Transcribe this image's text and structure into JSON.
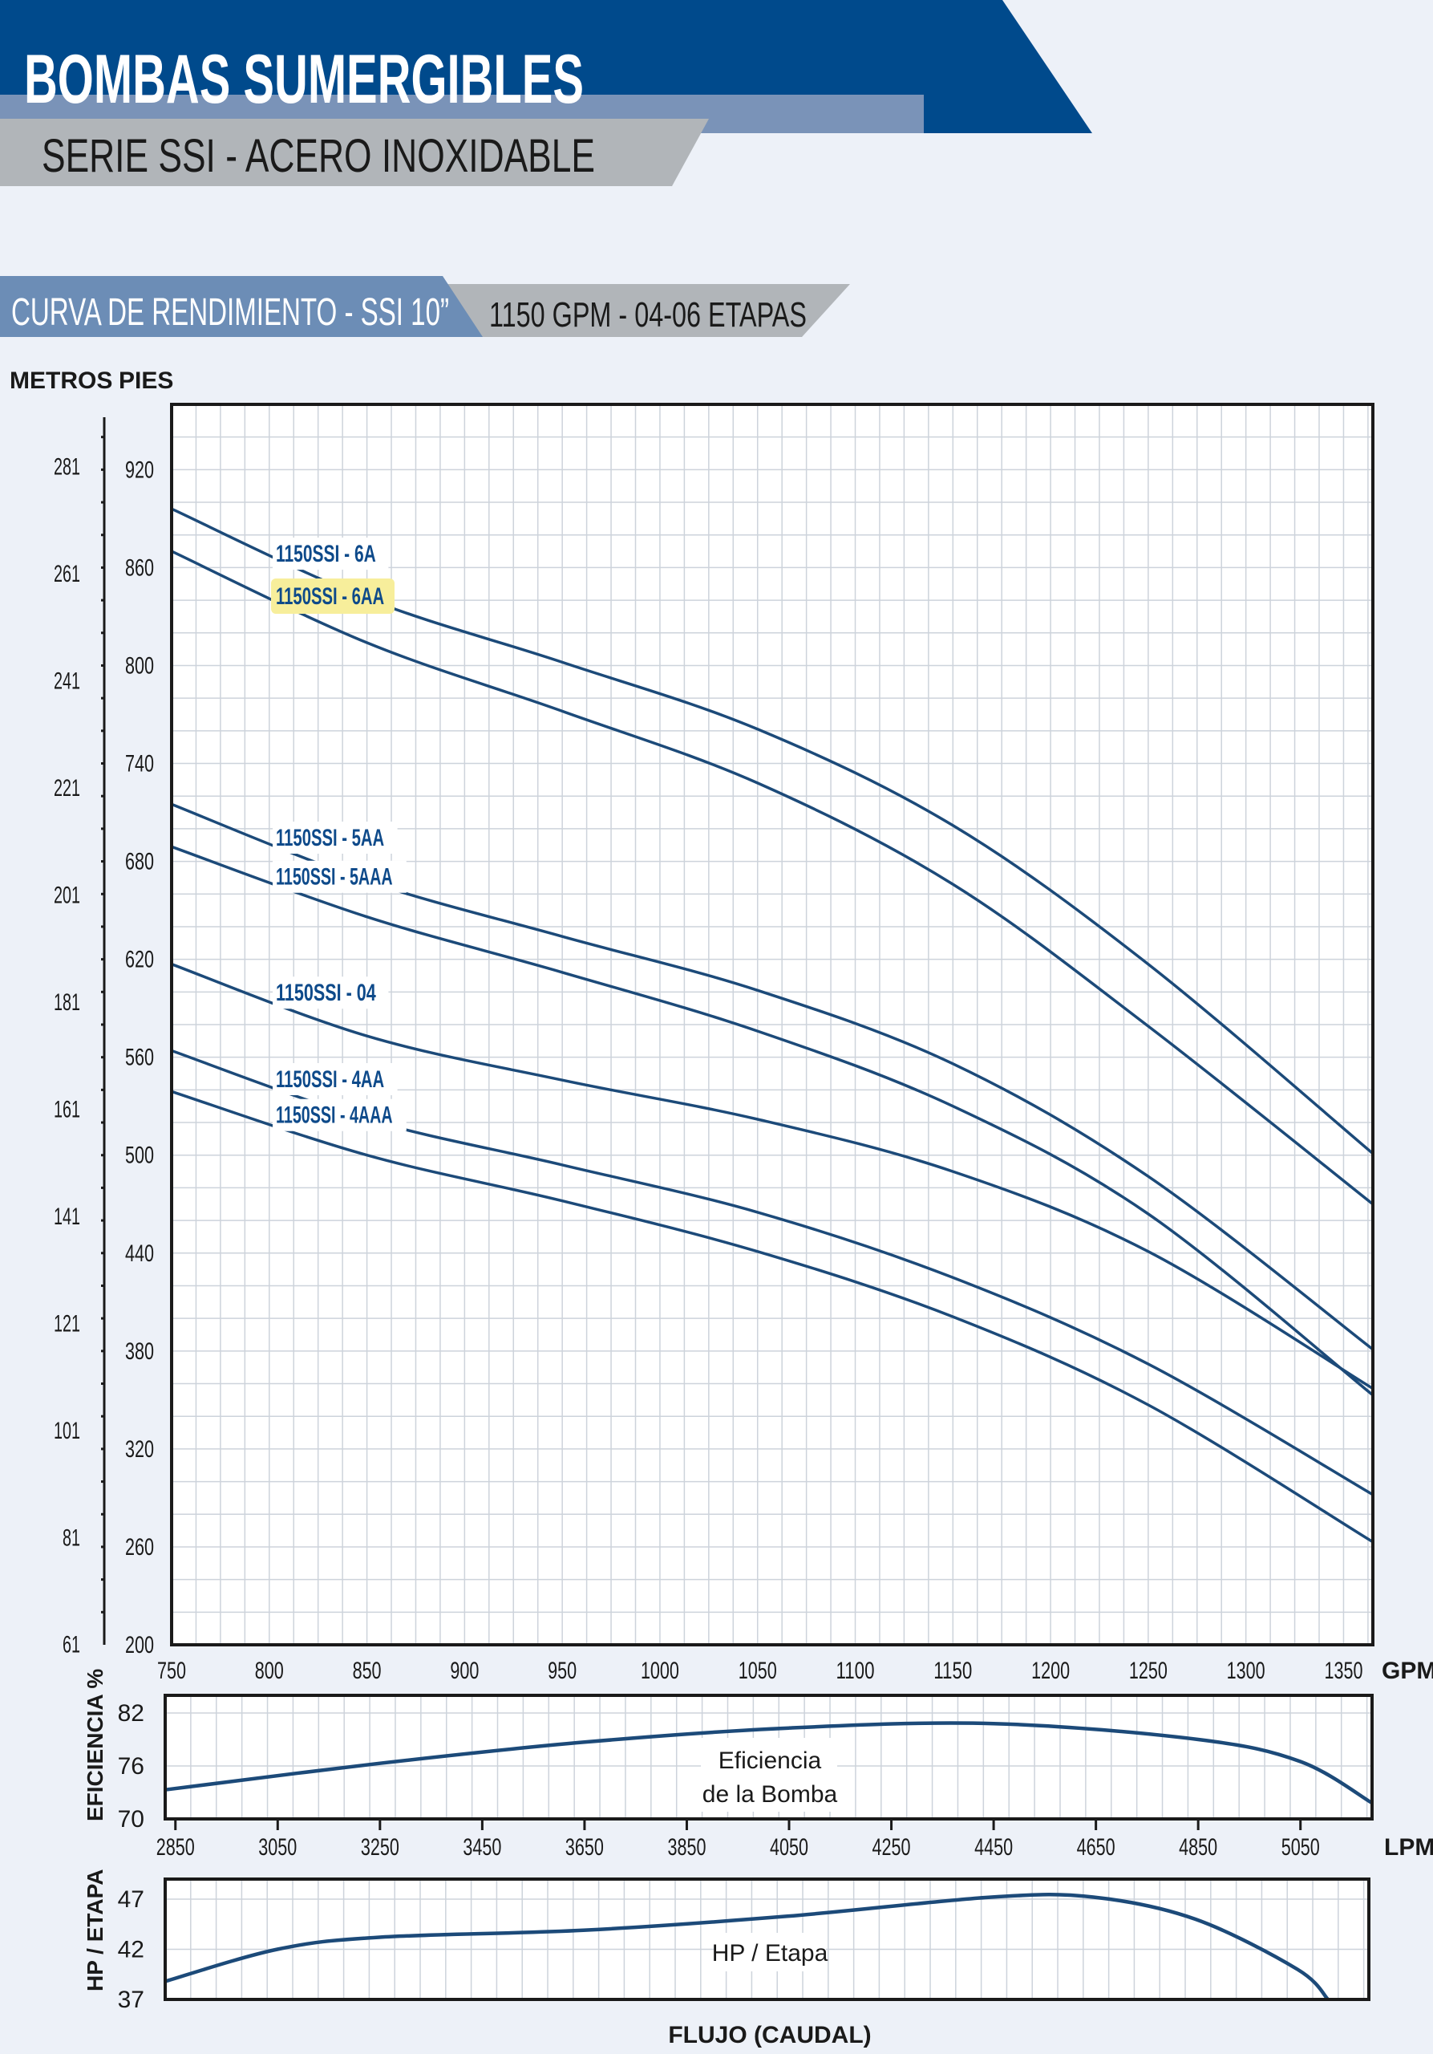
{
  "header": {
    "title": "BOMBAS SUMERGIBLES",
    "subtitle": "SERIE SSI - ACERO INOXIDABLE"
  },
  "section": {
    "tag": "CURVA DE RENDIMIENTO - SSI 10”",
    "spec": "1150 GPM - 04-06 ETAPAS"
  },
  "colors": {
    "header_blue": "#004a8c",
    "header_light": "#7a93b8",
    "banner_gray": "#b1b5b9",
    "section_blue": "#6c8db6",
    "curve_blue": "#1c4a79",
    "label_blue": "#0e4a8a",
    "highlight": "#f7ee9b",
    "grid": "#cdd3db"
  },
  "chart_data": [
    {
      "type": "line",
      "title": "",
      "xlabel": "GPM",
      "ylabel": "PIES",
      "y2label": "METROS",
      "xlim": [
        750,
        1365
      ],
      "ylim": [
        200,
        960
      ],
      "x_ticks": [
        750,
        800,
        850,
        900,
        950,
        1000,
        1050,
        1100,
        1150,
        1200,
        1250,
        1300,
        1350
      ],
      "y_ticks": [
        200,
        260,
        320,
        380,
        440,
        500,
        560,
        620,
        680,
        740,
        800,
        860,
        920
      ],
      "y2_ticks": [
        "61",
        "81",
        "101",
        "121",
        "141",
        "161",
        "181",
        "201",
        "221",
        "241",
        "261",
        "281"
      ],
      "grid": true,
      "series": [
        {
          "name": "1150SSI - 6A",
          "x": [
            750,
            850,
            950,
            1050,
            1150,
            1250,
            1365
          ],
          "y": [
            896,
            841,
            802,
            761,
            702,
            617,
            501
          ],
          "highlight": false
        },
        {
          "name": "1150SSI - 6AA",
          "x": [
            750,
            850,
            950,
            1050,
            1150,
            1250,
            1365
          ],
          "y": [
            870,
            814,
            772,
            728,
            666,
            579,
            470
          ],
          "highlight": true
        },
        {
          "name": "1150SSI - 5AA",
          "x": [
            750,
            850,
            950,
            1050,
            1150,
            1250,
            1365
          ],
          "y": [
            715,
            668,
            634,
            601,
            556,
            487,
            381
          ],
          "highlight": false
        },
        {
          "name": "1150SSI - 5AAA",
          "x": [
            750,
            850,
            950,
            1050,
            1150,
            1250,
            1365
          ],
          "y": [
            689,
            646,
            612,
            576,
            530,
            464,
            353
          ],
          "highlight": false
        },
        {
          "name": "1150SSI - 04",
          "x": [
            750,
            850,
            950,
            1050,
            1150,
            1250,
            1365
          ],
          "y": [
            617,
            573,
            546,
            522,
            490,
            441,
            357
          ],
          "highlight": false
        },
        {
          "name": "1150SSI - 4AA",
          "x": [
            750,
            850,
            950,
            1050,
            1150,
            1250,
            1365
          ],
          "y": [
            564,
            522,
            494,
            465,
            425,
            372,
            292
          ],
          "highlight": false
        },
        {
          "name": "1150SSI - 4AAA",
          "x": [
            750,
            850,
            950,
            1050,
            1150,
            1250,
            1365
          ],
          "y": [
            539,
            500,
            472,
            441,
            401,
            347,
            263
          ],
          "highlight": false
        }
      ]
    },
    {
      "type": "line",
      "title": "",
      "xlabel": "LPM",
      "ylabel": "EFICIENCIA %",
      "xlim": [
        2830,
        5190
      ],
      "ylim": [
        70,
        84
      ],
      "x_ticks": [
        2850,
        3050,
        3250,
        3450,
        3650,
        3850,
        4050,
        4250,
        4450,
        4650,
        4850,
        5050
      ],
      "y_ticks": [
        70,
        76,
        82
      ],
      "annotation": "Eficiencia\nde la Bomba",
      "series": [
        {
          "name": "",
          "x": [
            2830,
            3250,
            3650,
            4050,
            4450,
            4850,
            5050,
            5190
          ],
          "y": [
            73.3,
            76.3,
            78.7,
            80.3,
            80.8,
            79.0,
            76.5,
            71.8
          ]
        }
      ]
    },
    {
      "type": "line",
      "title": "",
      "xlabel": "FLUJO (CAUDAL)",
      "ylabel": "HP / ETAPA",
      "xlim": [
        2830,
        5190
      ],
      "ylim": [
        37,
        49
      ],
      "y_ticks": [
        37,
        42,
        47
      ],
      "annotation": "HP / Etapa",
      "series": [
        {
          "name": "",
          "x": [
            2830,
            3050,
            3250,
            3650,
            4050,
            4450,
            4650,
            4850,
            5050,
            5110
          ],
          "y": [
            38.8,
            42.0,
            43.2,
            43.9,
            45.3,
            47.2,
            47.2,
            45.0,
            40.0,
            37.0
          ]
        }
      ]
    }
  ]
}
